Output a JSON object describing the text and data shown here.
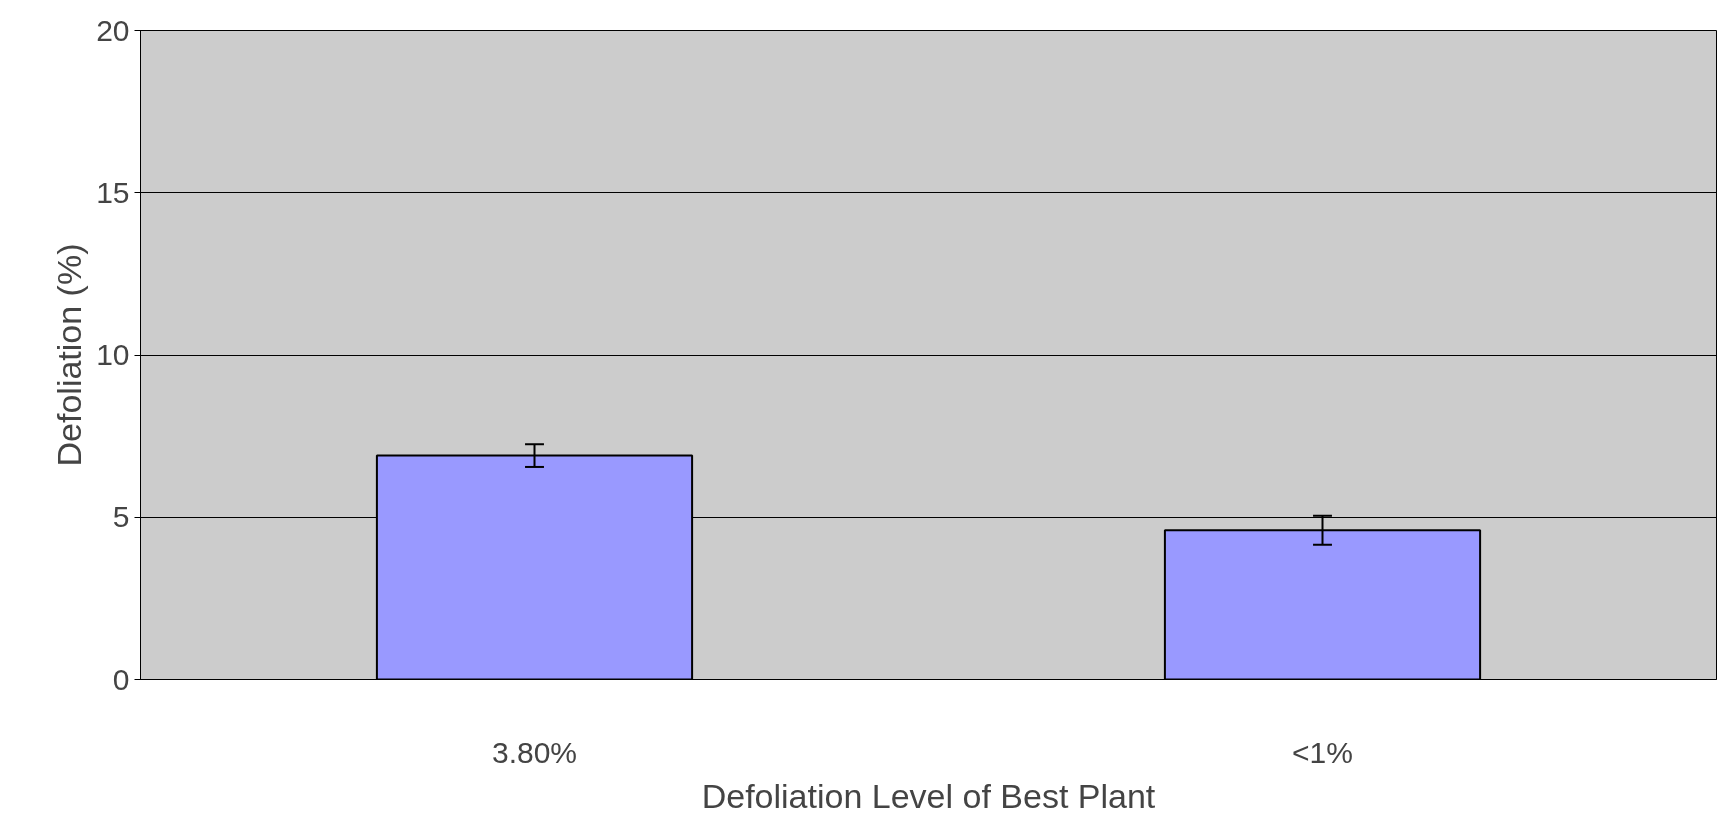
{
  "chart_data": {
    "type": "bar",
    "xlabel": "Defoliation Level of Best Plant",
    "ylabel": "Defoliation (%)",
    "categories": [
      "3.80%",
      "<1%"
    ],
    "series": [
      {
        "color": "#9999ff",
        "values": [
          6.9,
          4.6
        ],
        "errors": [
          0.35,
          0.45
        ]
      }
    ],
    "ylim": [
      0,
      20
    ],
    "yticks": [
      0,
      5,
      10,
      15,
      20
    ],
    "grid": "y"
  }
}
